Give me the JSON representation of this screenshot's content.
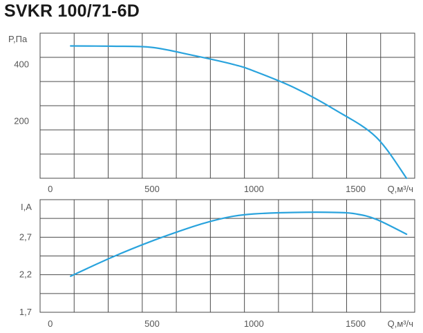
{
  "title": "SVKR 100/71-6D",
  "colors": {
    "curve": "#29a3dd",
    "grid": "#4a4a4a",
    "text": "#555555"
  },
  "chart_data": [
    {
      "type": "line",
      "ylabel": "P,Па",
      "xlabel": "Q,м³/ч",
      "xlim": [
        -50,
        1790
      ],
      "ylim": [
        0,
        510
      ],
      "x_ticks": [
        0,
        500,
        1000,
        1500
      ],
      "y_ticks": [
        200,
        400
      ],
      "grid": true,
      "series": [
        {
          "x": [
            100,
            300,
            500,
            700,
            900,
            1000,
            1200,
            1400,
            1600,
            1750
          ],
          "y": [
            465,
            464,
            460,
            432,
            400,
            377,
            318,
            240,
            145,
            0
          ]
        }
      ]
    },
    {
      "type": "line",
      "ylabel": "I,A",
      "xlabel": "Q,м³/ч",
      "xlim": [
        -50,
        1790
      ],
      "ylim": [
        1.7,
        3.2
      ],
      "x_ticks": [
        0,
        500,
        1000,
        1500
      ],
      "y_ticks": [
        1.7,
        2.2,
        2.7
      ],
      "y_tick_labels": [
        "1,7",
        "2,2",
        "2,7"
      ],
      "grid": true,
      "series": [
        {
          "x": [
            100,
            300,
            500,
            700,
            800,
            900,
            1000,
            1200,
            1400,
            1500,
            1600,
            1750
          ],
          "y": [
            2.18,
            2.43,
            2.65,
            2.84,
            2.92,
            2.98,
            3.01,
            3.03,
            3.03,
            3.01,
            2.94,
            2.74
          ]
        }
      ]
    }
  ]
}
